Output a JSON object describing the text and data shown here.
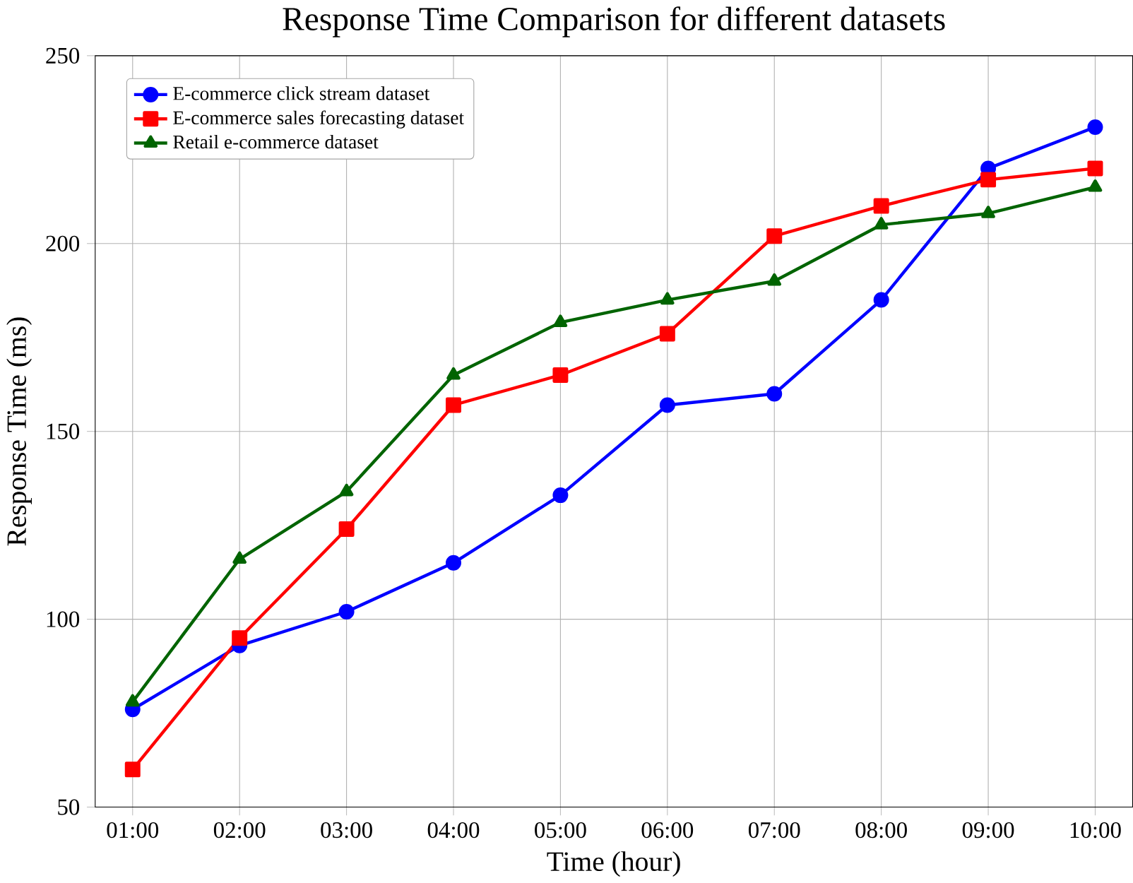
{
  "chart_data": {
    "type": "line",
    "title": "Response Time Comparison for different datasets",
    "xlabel": "Time (hour)",
    "ylabel": "Response Time (ms)",
    "categories": [
      "01:00",
      "02:00",
      "03:00",
      "04:00",
      "05:00",
      "06:00",
      "07:00",
      "08:00",
      "09:00",
      "10:00"
    ],
    "series": [
      {
        "name": "E-commerce click stream dataset",
        "color": "#0000ff",
        "marker": "circle",
        "values": [
          76,
          93,
          102,
          115,
          133,
          157,
          160,
          185,
          220,
          231
        ]
      },
      {
        "name": "E-commerce sales forecasting dataset",
        "color": "#ff0000",
        "marker": "square",
        "values": [
          60,
          95,
          124,
          157,
          165,
          176,
          202,
          210,
          217,
          220
        ]
      },
      {
        "name": "Retail e-commerce dataset",
        "color": "#006400",
        "marker": "triangle",
        "values": [
          78,
          116,
          134,
          165,
          179,
          185,
          190,
          205,
          208,
          215
        ]
      }
    ],
    "ylim": [
      50,
      250
    ],
    "yticks": [
      50,
      100,
      150,
      200,
      250
    ],
    "grid": true,
    "legend": "top left",
    "line_style": "solid"
  }
}
